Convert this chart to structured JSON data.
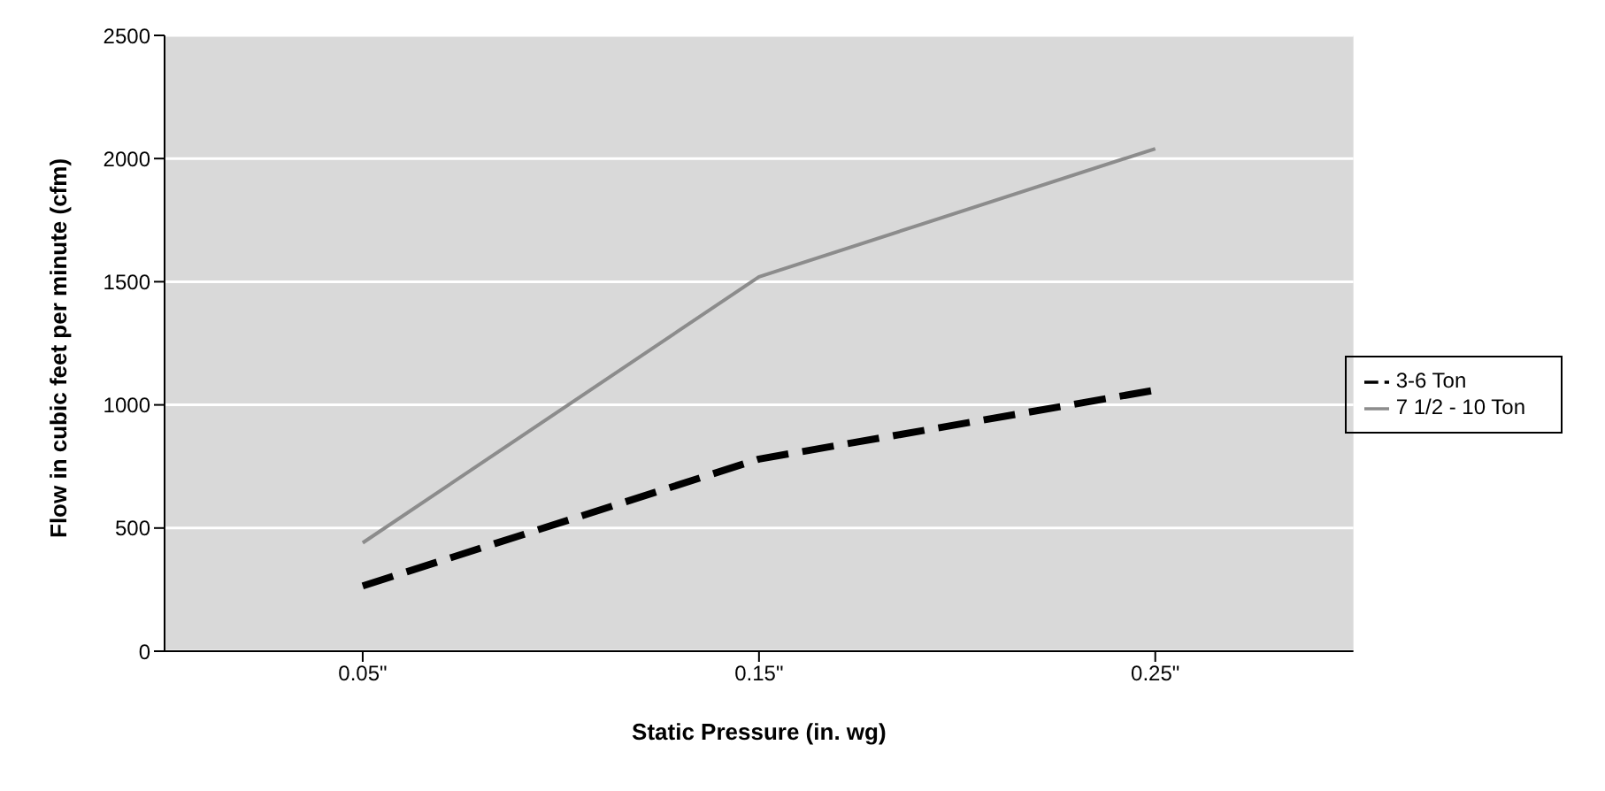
{
  "chart_data": {
    "type": "line",
    "xlabel": "Static Pressure (in. wg)",
    "ylabel": "Flow in cubic feet per minute (cfm)",
    "categories": [
      "0.05\"",
      "0.15\"",
      "0.25\""
    ],
    "series": [
      {
        "name": "3-6 Ton",
        "color": "#000000",
        "line_style": "dashed",
        "values": [
          265,
          780,
          1060
        ]
      },
      {
        "name": "7 1/2 - 10 Ton",
        "color": "#8c8c8c",
        "line_style": "solid",
        "values": [
          440,
          1520,
          2040
        ]
      }
    ],
    "ylim": [
      0,
      2500
    ],
    "yticks": [
      0,
      500,
      1000,
      1500,
      2000,
      2500
    ],
    "grid": "y",
    "legend": "right",
    "marker": "none"
  }
}
